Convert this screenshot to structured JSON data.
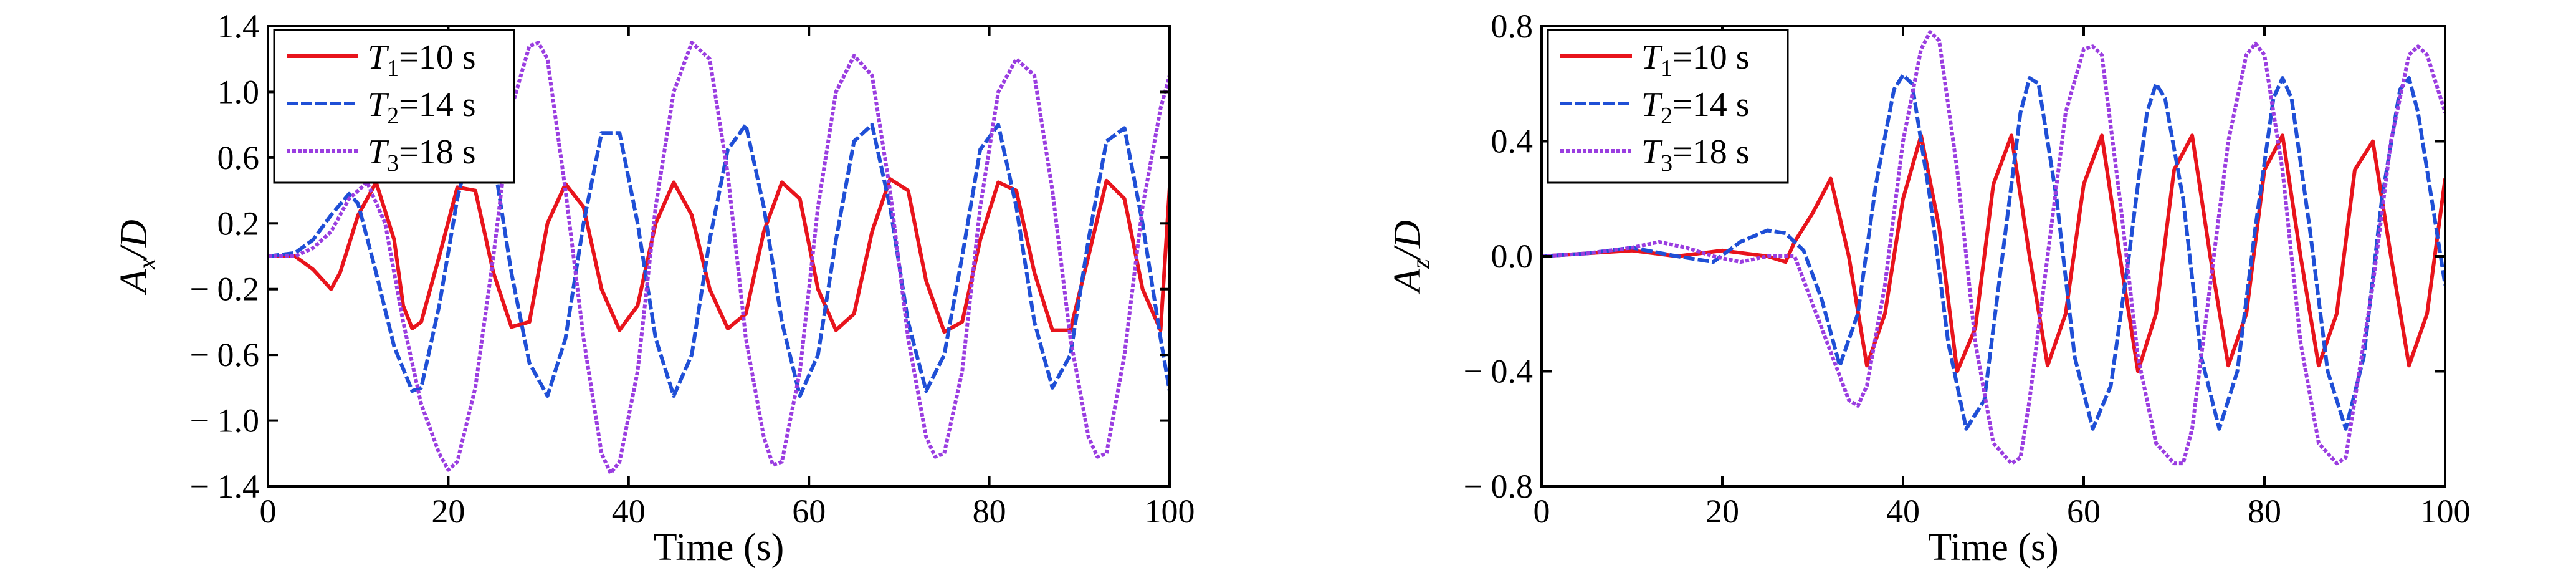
{
  "chart_data": [
    {
      "type": "line",
      "title": "",
      "xlabel": "Time (s)",
      "ylabel": {
        "base": "A",
        "sub": "x",
        "tail": "/D"
      },
      "xlim": [
        0,
        100
      ],
      "ylim": [
        -1.4,
        1.4
      ],
      "x_ticks": [
        0,
        20,
        40,
        60,
        80,
        100
      ],
      "x_tick_labels": [
        "0",
        "20",
        "40",
        "60",
        "80",
        "100"
      ],
      "y_ticks": [
        1.4,
        1.0,
        0.6,
        0.2,
        -0.2,
        -0.6,
        -1.0,
        -1.4
      ],
      "y_tick_labels": [
        "1.4",
        "1.0",
        "0.6",
        "0.2",
        "− 0.2",
        "− 0.6",
        "− 1.0",
        "− 1.4"
      ],
      "legend_position": "top-left",
      "series": [
        {
          "name": "T1=10 s",
          "legend": {
            "sym": "T",
            "sub": "1",
            "rest": "=10 s"
          },
          "color": "#e8141c",
          "dash": "solid",
          "x": [
            0,
            3,
            5,
            7,
            8,
            10,
            12,
            14,
            15,
            16,
            17,
            19,
            21,
            23,
            25,
            27,
            29,
            31,
            33,
            35,
            37,
            39,
            41,
            43,
            45,
            47,
            49,
            51,
            53,
            55,
            57,
            59,
            61,
            63,
            65,
            67,
            69,
            71,
            73,
            75,
            77,
            79,
            81,
            83,
            85,
            87,
            89,
            91,
            93,
            95,
            97,
            99,
            100
          ],
          "y": [
            0.0,
            0.0,
            -0.08,
            -0.2,
            -0.1,
            0.25,
            0.45,
            0.1,
            -0.3,
            -0.44,
            -0.4,
            0.0,
            0.42,
            0.4,
            -0.1,
            -0.43,
            -0.4,
            0.2,
            0.44,
            0.3,
            -0.2,
            -0.45,
            -0.3,
            0.2,
            0.45,
            0.25,
            -0.2,
            -0.44,
            -0.35,
            0.15,
            0.45,
            0.35,
            -0.2,
            -0.45,
            -0.35,
            0.15,
            0.47,
            0.4,
            -0.15,
            -0.46,
            -0.4,
            0.1,
            0.45,
            0.4,
            -0.1,
            -0.45,
            -0.45,
            0.0,
            0.46,
            0.35,
            -0.2,
            -0.45,
            0.42
          ]
        },
        {
          "name": "T2=14 s",
          "legend": {
            "sym": "T",
            "sub": "2",
            "rest": "=14 s"
          },
          "color": "#1f4fd6",
          "dash": "18,5",
          "x": [
            0,
            3,
            5,
            7,
            9,
            10,
            12,
            14,
            16,
            17,
            19,
            21,
            23,
            25,
            27,
            29,
            31,
            33,
            35,
            37,
            39,
            41,
            43,
            45,
            47,
            49,
            51,
            53,
            55,
            57,
            59,
            61,
            63,
            65,
            67,
            69,
            71,
            73,
            75,
            77,
            79,
            81,
            83,
            85,
            87,
            89,
            91,
            93,
            95,
            97,
            99,
            100
          ],
          "y": [
            0.0,
            0.02,
            0.1,
            0.25,
            0.38,
            0.32,
            -0.1,
            -0.55,
            -0.82,
            -0.8,
            -0.3,
            0.35,
            0.8,
            0.6,
            -0.1,
            -0.65,
            -0.85,
            -0.5,
            0.2,
            0.75,
            0.75,
            0.2,
            -0.5,
            -0.85,
            -0.6,
            0.1,
            0.65,
            0.8,
            0.3,
            -0.4,
            -0.85,
            -0.6,
            0.1,
            0.7,
            0.8,
            0.3,
            -0.4,
            -0.82,
            -0.6,
            0.0,
            0.65,
            0.8,
            0.3,
            -0.4,
            -0.8,
            -0.6,
            0.1,
            0.7,
            0.78,
            0.2,
            -0.5,
            -0.82
          ]
        },
        {
          "name": "T3=18 s",
          "legend": {
            "sym": "T",
            "sub": "3",
            "rest": "=18 s"
          },
          "color": "#9a3de0",
          "dash": "6,3",
          "x": [
            0,
            3,
            5,
            7,
            9,
            11,
            13,
            15,
            17,
            19,
            20,
            21,
            23,
            25,
            27,
            29,
            30,
            31,
            33,
            35,
            37,
            38,
            39,
            41,
            43,
            45,
            47,
            49,
            51,
            53,
            55,
            56,
            57,
            59,
            61,
            63,
            65,
            67,
            69,
            71,
            73,
            74,
            75,
            77,
            79,
            81,
            83,
            85,
            87,
            89,
            91,
            92,
            93,
            95,
            97,
            99,
            100
          ],
          "y": [
            0.0,
            0.0,
            0.05,
            0.15,
            0.35,
            0.45,
            0.2,
            -0.4,
            -0.9,
            -1.2,
            -1.3,
            -1.25,
            -0.8,
            0.0,
            0.9,
            1.28,
            1.3,
            1.2,
            0.4,
            -0.5,
            -1.2,
            -1.32,
            -1.25,
            -0.7,
            0.3,
            1.0,
            1.3,
            1.2,
            0.5,
            -0.5,
            -1.1,
            -1.27,
            -1.25,
            -0.7,
            0.3,
            1.0,
            1.22,
            1.1,
            0.4,
            -0.5,
            -1.1,
            -1.22,
            -1.2,
            -0.7,
            0.3,
            1.0,
            1.2,
            1.1,
            0.4,
            -0.5,
            -1.1,
            -1.22,
            -1.2,
            -0.6,
            0.3,
            0.9,
            1.1
          ]
        }
      ]
    },
    {
      "type": "line",
      "title": "",
      "xlabel": "Time (s)",
      "ylabel": {
        "base": "A",
        "sub": "z",
        "tail": "/D"
      },
      "xlim": [
        0,
        100
      ],
      "ylim": [
        -0.8,
        0.8
      ],
      "x_ticks": [
        0,
        20,
        40,
        60,
        80,
        100
      ],
      "x_tick_labels": [
        "0",
        "20",
        "40",
        "60",
        "80",
        "100"
      ],
      "y_ticks": [
        0.8,
        0.4,
        0.0,
        -0.4,
        -0.8
      ],
      "y_tick_labels": [
        "0.8",
        "0.4",
        "0.0",
        "− 0.4",
        "− 0.8"
      ],
      "legend_position": "top-left",
      "series": [
        {
          "name": "T1=10 s",
          "legend": {
            "sym": "T",
            "sub": "1",
            "rest": "=10 s"
          },
          "color": "#e8141c",
          "dash": "solid",
          "x": [
            0,
            5,
            10,
            15,
            20,
            25,
            27,
            28,
            30,
            32,
            34,
            36,
            38,
            40,
            42,
            44,
            46,
            48,
            50,
            52,
            54,
            56,
            58,
            60,
            62,
            64,
            66,
            68,
            70,
            72,
            74,
            76,
            78,
            80,
            82,
            84,
            86,
            88,
            90,
            92,
            94,
            96,
            98,
            100
          ],
          "y": [
            0.0,
            0.01,
            0.02,
            0.0,
            0.02,
            0.0,
            -0.02,
            0.05,
            0.15,
            0.27,
            0.0,
            -0.38,
            -0.2,
            0.2,
            0.42,
            0.1,
            -0.4,
            -0.25,
            0.25,
            0.42,
            0.0,
            -0.38,
            -0.2,
            0.25,
            0.42,
            0.0,
            -0.4,
            -0.2,
            0.3,
            0.42,
            0.0,
            -0.38,
            -0.2,
            0.3,
            0.42,
            0.0,
            -0.38,
            -0.2,
            0.3,
            0.4,
            0.0,
            -0.38,
            -0.2,
            0.27
          ]
        },
        {
          "name": "T2=14 s",
          "legend": {
            "sym": "T",
            "sub": "2",
            "rest": "=14 s"
          },
          "color": "#1f4fd6",
          "dash": "18,5",
          "x": [
            0,
            5,
            10,
            15,
            19,
            22,
            25,
            27,
            29,
            31,
            33,
            35,
            37,
            39,
            40,
            41,
            43,
            45,
            47,
            49,
            51,
            53,
            54,
            55,
            57,
            59,
            61,
            63,
            65,
            67,
            68,
            69,
            71,
            73,
            75,
            77,
            79,
            81,
            82,
            83,
            85,
            87,
            89,
            91,
            93,
            95,
            96,
            97,
            99,
            100
          ],
          "y": [
            0.0,
            0.01,
            0.03,
            0.0,
            -0.02,
            0.05,
            0.09,
            0.08,
            0.02,
            -0.15,
            -0.38,
            -0.2,
            0.25,
            0.58,
            0.63,
            0.6,
            0.2,
            -0.3,
            -0.6,
            -0.5,
            0.0,
            0.5,
            0.62,
            0.6,
            0.2,
            -0.35,
            -0.6,
            -0.45,
            0.0,
            0.5,
            0.6,
            0.55,
            0.2,
            -0.35,
            -0.6,
            -0.4,
            0.1,
            0.55,
            0.62,
            0.55,
            0.1,
            -0.4,
            -0.6,
            -0.35,
            0.2,
            0.58,
            0.62,
            0.5,
            0.1,
            -0.1
          ]
        },
        {
          "name": "T3=18 s",
          "legend": {
            "sym": "T",
            "sub": "3",
            "rest": "=18 s"
          },
          "color": "#9a3de0",
          "dash": "6,3",
          "x": [
            0,
            5,
            10,
            13,
            16,
            19,
            22,
            25,
            28,
            31,
            34,
            35,
            36,
            38,
            40,
            42,
            43,
            44,
            46,
            48,
            50,
            52,
            53,
            54,
            56,
            58,
            60,
            61,
            62,
            64,
            66,
            68,
            70,
            71,
            72,
            74,
            76,
            78,
            79,
            80,
            82,
            84,
            86,
            88,
            89,
            90,
            92,
            94,
            96,
            97,
            98,
            100
          ],
          "y": [
            0.0,
            0.01,
            0.03,
            0.05,
            0.03,
            0.0,
            -0.02,
            0.0,
            0.0,
            -0.25,
            -0.5,
            -0.52,
            -0.45,
            -0.1,
            0.4,
            0.72,
            0.78,
            0.75,
            0.3,
            -0.3,
            -0.65,
            -0.72,
            -0.7,
            -0.5,
            0.0,
            0.5,
            0.72,
            0.73,
            0.7,
            0.2,
            -0.35,
            -0.65,
            -0.72,
            -0.72,
            -0.6,
            -0.1,
            0.4,
            0.7,
            0.74,
            0.7,
            0.3,
            -0.3,
            -0.65,
            -0.72,
            -0.7,
            -0.5,
            -0.1,
            0.4,
            0.7,
            0.73,
            0.7,
            0.5
          ]
        }
      ]
    }
  ]
}
